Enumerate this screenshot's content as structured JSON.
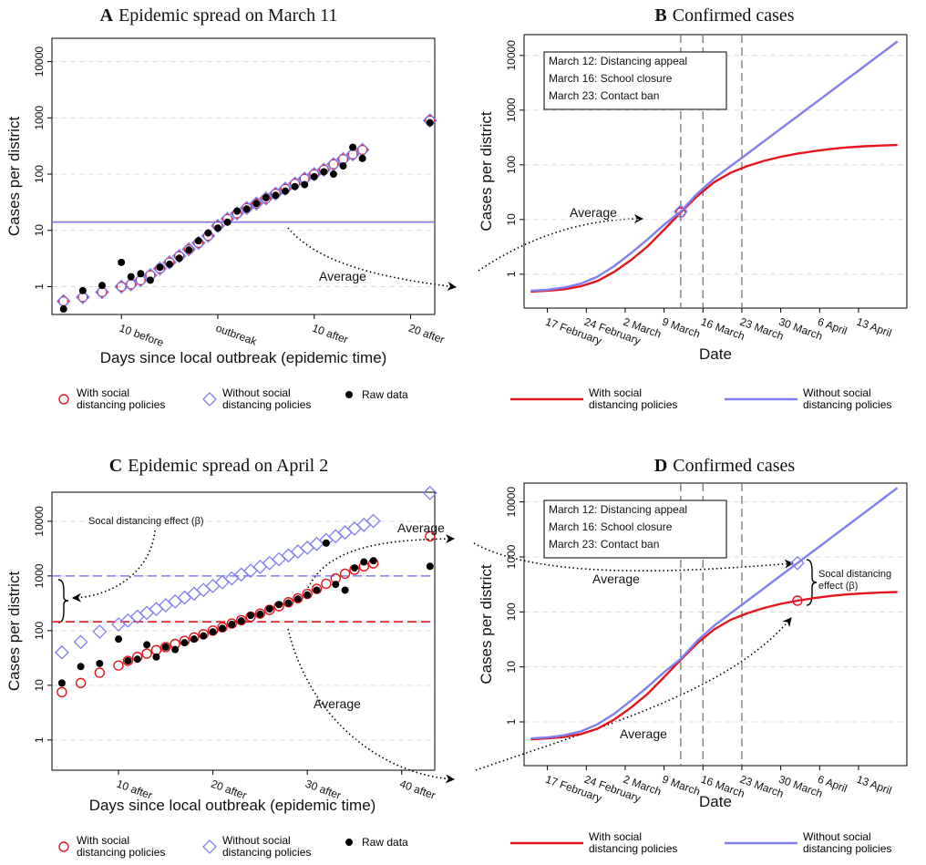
{
  "chart_data": [
    {
      "type": "scatter",
      "panel": "A",
      "title": "Epidemic spread on March 11",
      "x_label": "Days since local outbreak (epidemic time)",
      "y_label": "Cases per district",
      "log_y": true,
      "grid": true,
      "average_style": "solid",
      "xlim": [
        -17.2,
        22.5
      ],
      "ylim": [
        0.32,
        26000
      ],
      "xticks": [
        {
          "value": -10,
          "label": "10 before"
        },
        {
          "value": 0,
          "label": "outbreak"
        },
        {
          "value": 10,
          "label": "10 after"
        },
        {
          "value": 20,
          "label": "20 after"
        }
      ],
      "yticks": [
        1,
        10,
        100,
        1000,
        10000
      ],
      "x": [
        -16,
        -14,
        -12,
        -10,
        -9,
        -8,
        -7,
        -6,
        -5,
        -4,
        -3,
        -2,
        -1,
        0,
        1,
        2,
        3,
        4,
        5,
        6,
        7,
        8,
        9,
        10,
        11,
        12,
        13,
        14,
        15,
        22
      ],
      "series": [
        {
          "name": "With social distancing policies",
          "color": "#e3141c",
          "marker": "circle",
          "average": 14,
          "values": [
            0.55,
            0.65,
            0.8,
            1.0,
            1.1,
            1.3,
            1.6,
            2.1,
            2.7,
            3.5,
            4.6,
            6,
            8,
            12,
            16,
            20,
            25,
            30,
            37,
            45,
            55,
            68,
            83,
            100,
            120,
            150,
            185,
            225,
            270,
            900
          ]
        },
        {
          "name": "Without social distancing policies",
          "color": "#7f7ff0",
          "marker": "diamond",
          "average": 14,
          "values": [
            0.55,
            0.65,
            0.8,
            1.0,
            1.1,
            1.3,
            1.6,
            2.1,
            2.7,
            3.5,
            4.6,
            6,
            8,
            12,
            16,
            20,
            25,
            30,
            37,
            45,
            55,
            68,
            83,
            100,
            120,
            150,
            185,
            225,
            270,
            900
          ]
        },
        {
          "name": "Raw data",
          "color": "#000000",
          "marker": "dot",
          "values": [
            0.4,
            0.85,
            1.05,
            2.7,
            1.5,
            1.7,
            1.3,
            2.2,
            2.5,
            3.2,
            4.5,
            6.5,
            9,
            11,
            14,
            22,
            24,
            30,
            38,
            42,
            50,
            60,
            65,
            90,
            110,
            100,
            140,
            300,
            190,
            820
          ]
        }
      ],
      "annotations": [
        "Average"
      ]
    },
    {
      "type": "line",
      "panel": "B",
      "title": "Confirmed cases",
      "x_label": "Date",
      "y_label": "Cases per district",
      "log_y": true,
      "grid": true,
      "xlim": [
        43.8,
        112.7
      ],
      "ylim": [
        0.24,
        24000
      ],
      "xticks": [
        {
          "value": 48,
          "label": "17 February"
        },
        {
          "value": 55,
          "label": "24 February"
        },
        {
          "value": 62,
          "label": "2 March"
        },
        {
          "value": 69,
          "label": "9 March"
        },
        {
          "value": 76,
          "label": "16 March"
        },
        {
          "value": 83,
          "label": "23 March"
        },
        {
          "value": 90,
          "label": "30 March"
        },
        {
          "value": 97,
          "label": "6 April"
        },
        {
          "value": 104,
          "label": "13 April"
        }
      ],
      "yticks": [
        1,
        10,
        100,
        1000,
        10000
      ],
      "events": [
        {
          "x": 72,
          "label": "March 12: Distancing appeal"
        },
        {
          "x": 76,
          "label": "March 16: School closure"
        },
        {
          "x": 83,
          "label": "March 23: Contact ban"
        }
      ],
      "x": [
        45,
        48,
        51,
        54,
        57,
        60,
        63,
        66,
        69,
        72,
        75,
        78,
        81,
        84,
        87,
        90,
        93,
        96,
        99,
        102,
        105,
        108,
        111
      ],
      "highlight_x": 72,
      "series": [
        {
          "name": "With social distancing policies",
          "color": "#e3141c",
          "marker": "circle",
          "highlight": 13.5,
          "values": [
            0.48,
            0.5,
            0.53,
            0.6,
            0.75,
            1.1,
            1.8,
            3.2,
            6.5,
            13.5,
            27,
            48,
            72,
            95,
            118,
            140,
            160,
            178,
            195,
            208,
            218,
            225,
            230
          ]
        },
        {
          "name": "Without social distancing policies",
          "color": "#7f7ff0",
          "marker": "diamond",
          "highlight": 14,
          "values": [
            0.5,
            0.52,
            0.57,
            0.67,
            0.9,
            1.4,
            2.4,
            4.3,
            8,
            14,
            30,
            56,
            95,
            160,
            270,
            457,
            772,
            1305,
            2205,
            3726,
            6297,
            10640,
            17980
          ]
        }
      ],
      "annotations": [
        "Average"
      ]
    },
    {
      "type": "scatter",
      "panel": "C",
      "title": "Epidemic spread on April 2",
      "x_label": "Days since local outbreak (epidemic time)",
      "y_label": "Cases per district",
      "log_y": true,
      "grid": true,
      "average_style": "dashed",
      "xlim": [
        2.95,
        43.5
      ],
      "ylim": [
        0.28,
        34000
      ],
      "xticks": [
        {
          "value": 10,
          "label": "10 after"
        },
        {
          "value": 20,
          "label": "20 after"
        },
        {
          "value": 30,
          "label": "30 after"
        },
        {
          "value": 40,
          "label": "40 after"
        }
      ],
      "yticks": [
        1,
        10,
        100,
        1000,
        10000
      ],
      "x": [
        4,
        6,
        8,
        10,
        11,
        12,
        13,
        14,
        15,
        16,
        17,
        18,
        19,
        20,
        21,
        22,
        23,
        24,
        25,
        26,
        27,
        28,
        29,
        30,
        31,
        32,
        33,
        34,
        35,
        36,
        37,
        43
      ],
      "series": [
        {
          "name": "With social distancing policies",
          "color": "#e3141c",
          "marker": "circle",
          "average": 145,
          "values": [
            7.5,
            11,
            17,
            23,
            28,
            33,
            38,
            44,
            50,
            57,
            65,
            75,
            86,
            100,
            115,
            135,
            155,
            180,
            205,
            240,
            280,
            330,
            390,
            470,
            580,
            720,
            900,
            1100,
            1300,
            1500,
            1700,
            5300
          ]
        },
        {
          "name": "Without social distancing policies",
          "color": "#7f7ff0",
          "marker": "diamond",
          "average": 1000,
          "values": [
            40,
            62,
            96,
            130,
            153,
            180,
            211,
            248,
            291,
            342,
            402,
            473,
            555,
            653,
            767,
            901,
            1059,
            1244,
            1462,
            1718,
            2018,
            2371,
            2786,
            3273,
            3846,
            4519,
            5310,
            6239,
            7331,
            8614,
            10121,
            33000
          ]
        },
        {
          "name": "Raw data",
          "color": "#000000",
          "marker": "dot",
          "values": [
            11,
            22,
            25,
            70,
            28,
            30,
            55,
            33,
            50,
            45,
            60,
            70,
            80,
            95,
            110,
            130,
            150,
            190,
            200,
            250,
            300,
            320,
            380,
            450,
            550,
            4000,
            700,
            550,
            1400,
            1800,
            1900,
            1500
          ]
        }
      ],
      "annotations": [
        "Socal distancing effect (β)",
        "Average",
        "Average"
      ]
    },
    {
      "type": "line",
      "panel": "D",
      "title": "Confirmed cases",
      "x_label": "Date",
      "y_label": "Cases per district",
      "log_y": true,
      "grid": true,
      "xlim": [
        43.8,
        112.7
      ],
      "ylim": [
        0.16,
        22000
      ],
      "xticks": [
        {
          "value": 48,
          "label": "17 February"
        },
        {
          "value": 55,
          "label": "24 February"
        },
        {
          "value": 62,
          "label": "2 March"
        },
        {
          "value": 69,
          "label": "9 March"
        },
        {
          "value": 76,
          "label": "16 March"
        },
        {
          "value": 83,
          "label": "23 March"
        },
        {
          "value": 90,
          "label": "30 March"
        },
        {
          "value": 97,
          "label": "6 April"
        },
        {
          "value": 104,
          "label": "13 April"
        }
      ],
      "yticks": [
        1,
        10,
        100,
        1000,
        10000
      ],
      "events": [
        {
          "x": 72,
          "label": "March 12: Distancing appeal"
        },
        {
          "x": 76,
          "label": "March 16: School closure"
        },
        {
          "x": 83,
          "label": "March 23: Contact ban"
        }
      ],
      "x": [
        45,
        48,
        51,
        54,
        57,
        60,
        63,
        66,
        69,
        72,
        75,
        78,
        81,
        84,
        87,
        90,
        93,
        96,
        99,
        102,
        105,
        108,
        111
      ],
      "highlight_x": 93,
      "series": [
        {
          "name": "With social distancing policies",
          "color": "#e3141c",
          "marker": "circle",
          "highlight": 160,
          "values": [
            0.48,
            0.5,
            0.53,
            0.6,
            0.75,
            1.1,
            1.8,
            3.2,
            6.5,
            13.5,
            27,
            48,
            72,
            95,
            118,
            140,
            160,
            178,
            195,
            208,
            218,
            225,
            230
          ]
        },
        {
          "name": "Without social distancing policies",
          "color": "#7f7ff0",
          "marker": "diamond",
          "highlight": 772,
          "values": [
            0.5,
            0.52,
            0.57,
            0.67,
            0.9,
            1.4,
            2.4,
            4.3,
            8,
            14,
            30,
            56,
            95,
            160,
            270,
            457,
            772,
            1305,
            2205,
            3726,
            6297,
            10640,
            17980
          ]
        }
      ],
      "annotations": [
        "Average",
        "Average",
        "Socal distancing effect (β)"
      ]
    }
  ]
}
